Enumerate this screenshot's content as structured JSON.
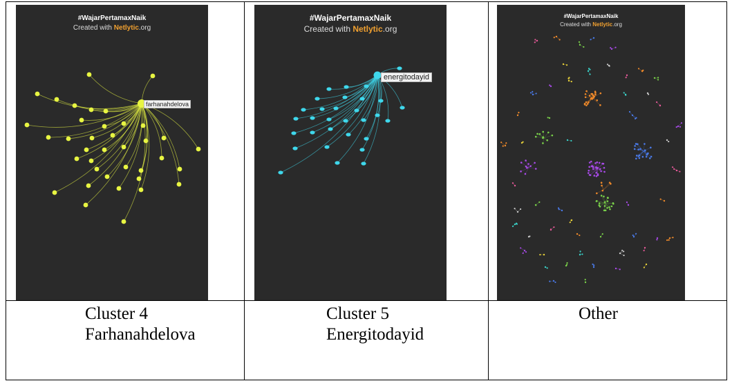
{
  "hashtag": "#WajarPertamaxNaik",
  "credit_prefix": "Created with ",
  "credit_brand": "Netlytic",
  "credit_suffix": ".org",
  "panels": [
    {
      "hub_label": "farhanahdelova",
      "caption_line1": "Cluster 4",
      "caption_line2": "Farhanahdelova",
      "node_color": "#e8f542"
    },
    {
      "hub_label": "energitodayid",
      "caption_line1": "Cluster 5",
      "caption_line2": "Energitodayid",
      "node_color": "#3fd8ec"
    },
    {
      "caption_line1": "Other",
      "caption_line2": ""
    }
  ]
}
